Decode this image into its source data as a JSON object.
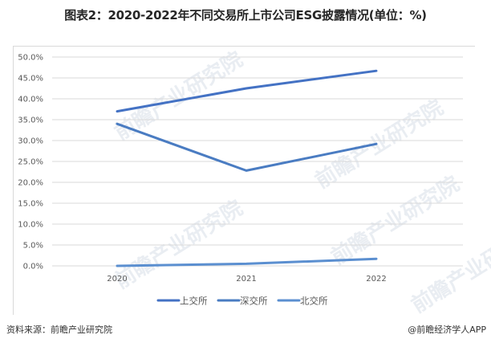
{
  "title": "图表2：2020-2022年不同交易所上市公司ESG披露情况(单位：%)",
  "footer": {
    "source": "资料来源：前瞻产业研究院",
    "credit": "@前瞻经济学人APP"
  },
  "watermark": "前瞻产业研究院",
  "colors": {
    "上交所": "#4472c4",
    "深交所": "#4a7cc2",
    "北交所": "#5b8fd0",
    "grid": "#d9d9d9"
  },
  "chart_data": {
    "type": "line",
    "title": "图表2：2020-2022年不同交易所上市公司ESG披露情况(单位：%)",
    "xlabel": "",
    "ylabel": "",
    "categories": [
      "2020",
      "2021",
      "2022"
    ],
    "series": [
      {
        "name": "上交所",
        "values": [
          37.0,
          42.5,
          46.7
        ]
      },
      {
        "name": "深交所",
        "values": [
          34.0,
          22.8,
          29.2
        ]
      },
      {
        "name": "北交所",
        "values": [
          0.0,
          0.5,
          1.7
        ]
      }
    ],
    "ylim": [
      0,
      50
    ],
    "yticks": [
      "0.0%",
      "5.0%",
      "10.0%",
      "15.0%",
      "20.0%",
      "25.0%",
      "30.0%",
      "35.0%",
      "40.0%",
      "45.0%",
      "50.0%"
    ],
    "grid": true,
    "legend_position": "bottom"
  }
}
